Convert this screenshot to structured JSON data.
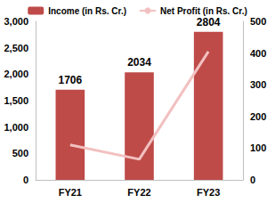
{
  "chart_data": {
    "type": "bar",
    "categories": [
      "FY21",
      "FY22",
      "FY23"
    ],
    "series": [
      {
        "name": "Income (in Rs. Cr.)",
        "type": "bar",
        "color": "#be4b48",
        "values": [
          1706,
          2034,
          2804
        ],
        "data_labels": true
      },
      {
        "name": "Net Profit (in Rs. Cr.)",
        "type": "line",
        "color": "#f2c0c0",
        "axis": "y2",
        "values": [
          110,
          65,
          405
        ]
      }
    ],
    "ylim": [
      0,
      3000
    ],
    "yticks": [
      0,
      500,
      1000,
      1500,
      2000,
      2500,
      3000
    ],
    "y2lim": [
      0,
      500
    ],
    "y2ticks": [
      0,
      100,
      200,
      300,
      400,
      500
    ],
    "grid": false,
    "legend": "top"
  }
}
